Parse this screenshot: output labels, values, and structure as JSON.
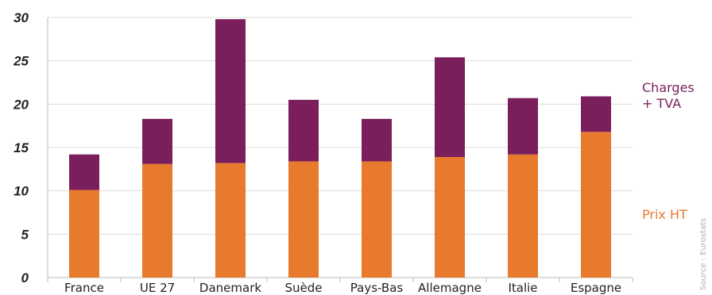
{
  "chart_data": {
    "type": "bar",
    "stacked": true,
    "categories": [
      "France",
      "UE 27",
      "Danemark",
      "Suède",
      "Pays-Bas",
      "Allemagne",
      "Italie",
      "Espagne"
    ],
    "series": [
      {
        "name": "Prix HT",
        "color": "#E87A2E",
        "values": [
          10.1,
          13.1,
          13.2,
          13.4,
          13.4,
          13.9,
          14.2,
          16.8
        ]
      },
      {
        "name": "Charges\n+ TVA",
        "color": "#7A1F5C",
        "values": [
          4.1,
          5.2,
          16.6,
          7.1,
          4.9,
          11.5,
          6.5,
          4.1
        ]
      }
    ],
    "ylim": [
      0,
      30
    ],
    "yticks": [
      0,
      5,
      10,
      15,
      20,
      25,
      30
    ],
    "grid": true,
    "legend": [
      "Charges\n+ TVA",
      "Prix HT"
    ],
    "source": "Source : Eurostats"
  }
}
